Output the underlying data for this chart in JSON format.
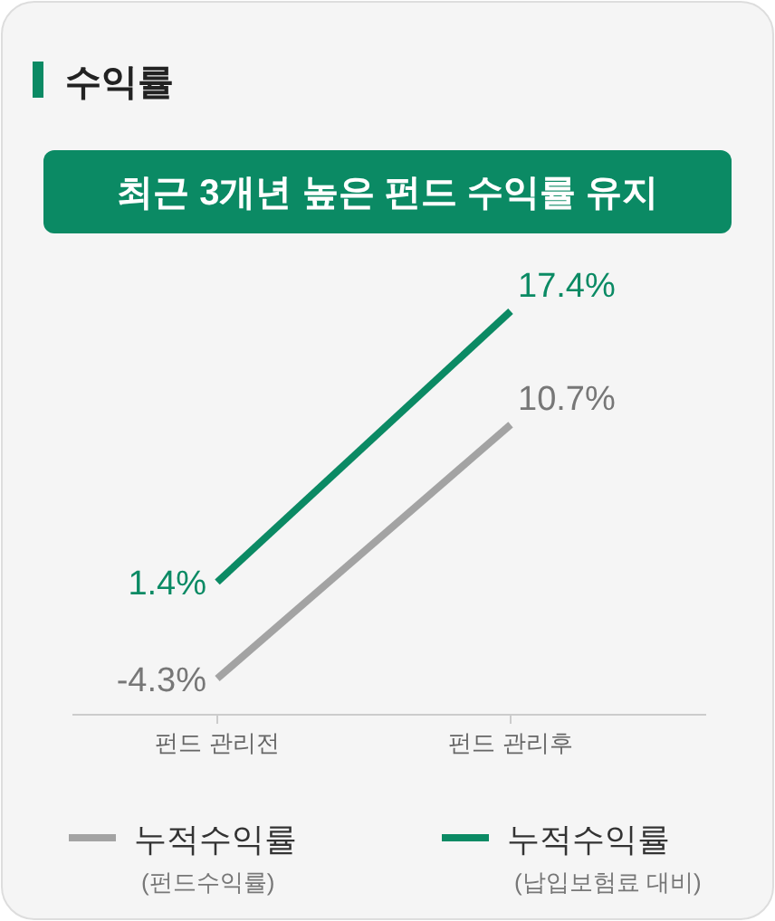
{
  "chart_data": {
    "type": "line",
    "title": "수익률",
    "subtitle": "최근 3개년 높은 펀드 수익률 유지",
    "categories": [
      "펀드 관리전",
      "펀드 관리후"
    ],
    "series": [
      {
        "name": "누적수익률\n(펀드수익률)",
        "color": "#a3a3a3",
        "values": [
          -4.3,
          10.7
        ],
        "value_labels": [
          "-4.3%",
          "10.7%"
        ]
      },
      {
        "name": "누적수익률\n(납입보험료 대비)",
        "color": "#0b8a64",
        "values": [
          1.4,
          17.4
        ],
        "value_labels": [
          "1.4%",
          "17.4%"
        ]
      }
    ],
    "grid": false,
    "legend": "bottom",
    "marker": "none",
    "line_style": "solid",
    "tick_labels": "x"
  }
}
